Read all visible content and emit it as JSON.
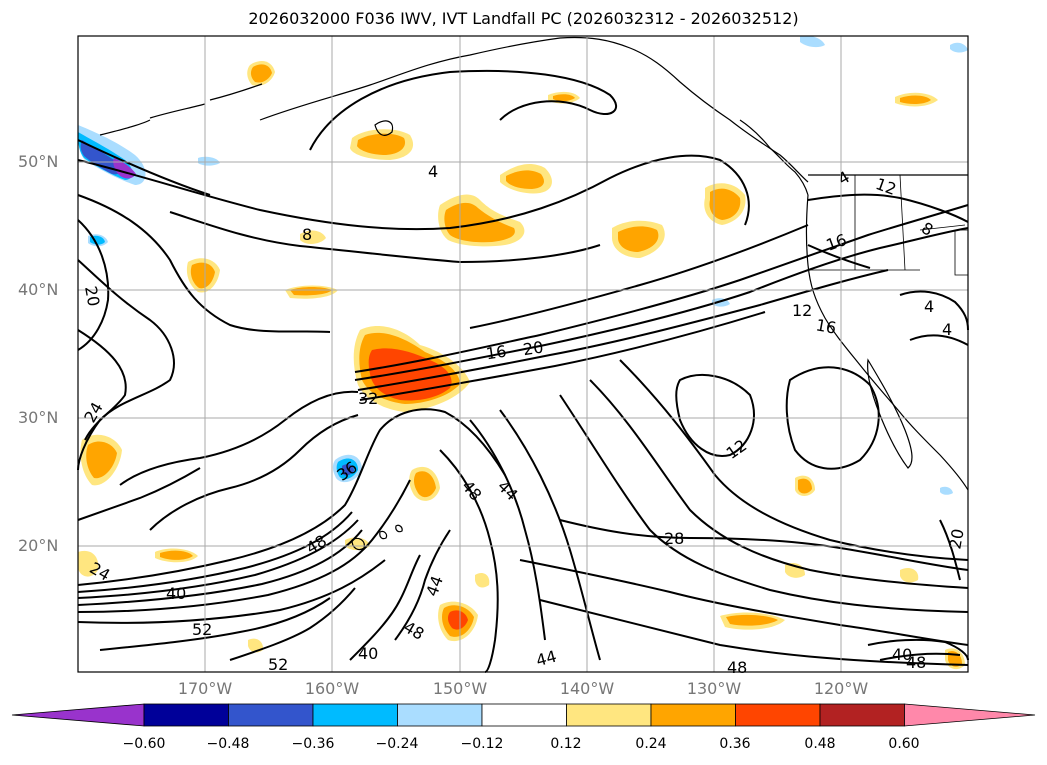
{
  "title": "2026032000 F036 IWV, IVT Landfall PC (2026032312 - 2026032512)",
  "latitude_labels": [
    "50°N",
    "40°N",
    "30°N",
    "20°N"
  ],
  "longitude_labels": [
    "170°W",
    "160°W",
    "150°W",
    "140°W",
    "130°W",
    "120°W"
  ],
  "colorbar": {
    "extend": "both",
    "ticks": [
      "−0.60",
      "−0.48",
      "−0.36",
      "−0.24",
      "−0.12",
      "0.12",
      "0.24",
      "0.36",
      "0.48",
      "0.60"
    ],
    "colors": [
      "#9933cc",
      "#000099",
      "#3355cc",
      "#00bbff",
      "#aaddff",
      "#ffffff",
      "#ffe680",
      "#ffa500",
      "#ff4500",
      "#b22222",
      "#ff88aa"
    ]
  },
  "contour_labels": [
    {
      "text": "4"
    },
    {
      "text": "8"
    },
    {
      "text": "20"
    },
    {
      "text": "16"
    },
    {
      "text": "20"
    },
    {
      "text": "32"
    },
    {
      "text": "36"
    },
    {
      "text": "48"
    },
    {
      "text": "44"
    },
    {
      "text": "48"
    },
    {
      "text": "24"
    },
    {
      "text": "40"
    },
    {
      "text": "52"
    },
    {
      "text": "52"
    },
    {
      "text": "40"
    },
    {
      "text": "44"
    },
    {
      "text": "48"
    },
    {
      "text": "44"
    },
    {
      "text": "28"
    },
    {
      "text": "12"
    },
    {
      "text": "16"
    },
    {
      "text": "12"
    },
    {
      "text": "8"
    },
    {
      "text": "4"
    },
    {
      "text": "20"
    },
    {
      "text": "40"
    },
    {
      "text": "48"
    },
    {
      "text": "48"
    },
    {
      "text": "24"
    },
    {
      "text": "4"
    },
    {
      "text": "12"
    },
    {
      "text": "4"
    },
    {
      "text": "16"
    }
  ],
  "colors": {
    "frame": "#000000",
    "grid": "#aaaaaa",
    "axis_label": "#777777",
    "contour": "#000000"
  }
}
